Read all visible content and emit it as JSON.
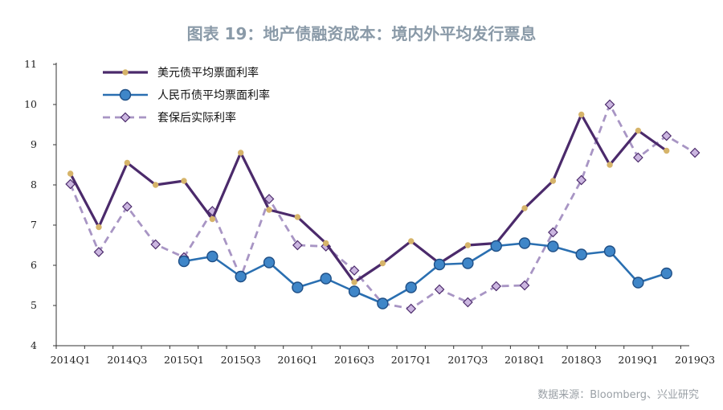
{
  "title": "图表 19：地产债融资成本：境内外平均发行票息",
  "source": "数据来源：Bloomberg、兴业研究",
  "colors": {
    "usd": "#4b2a6b",
    "usd_marker": "#d6b46a",
    "cny": "#2a6fb1",
    "cny_fill": "#3f86c8",
    "hedged": "#a895c4",
    "hedged_fill": "#cbb6e0"
  },
  "chart_data": {
    "type": "line",
    "title": "",
    "xlabel": "",
    "ylabel": "",
    "ylim": [
      4,
      11
    ],
    "yticks": [
      "4",
      "5",
      "6",
      "7",
      "8",
      "9",
      "10",
      "11"
    ],
    "x": [
      "2014Q1",
      "2014Q2",
      "2014Q3",
      "2014Q4",
      "2015Q1",
      "2015Q2",
      "2015Q3",
      "2015Q4",
      "2016Q1",
      "2016Q2",
      "2016Q3",
      "2016Q4",
      "2017Q1",
      "2017Q2",
      "2017Q3",
      "2017Q4",
      "2018Q1",
      "2018Q2",
      "2018Q3",
      "2018Q4",
      "2019Q1",
      "2019Q2",
      "2019Q3"
    ],
    "xtick_labels": [
      "2014Q1",
      "2014Q3",
      "2015Q1",
      "2015Q3",
      "2016Q1",
      "2016Q3",
      "2017Q1",
      "2017Q3",
      "2018Q1",
      "2018Q3",
      "2019Q1",
      "2019Q3"
    ],
    "legend_position": "top-left",
    "grid": false,
    "series": [
      {
        "name": "美元债平均票面利率",
        "values": [
          8.28,
          6.95,
          8.55,
          8.0,
          8.1,
          7.15,
          8.8,
          7.38,
          7.2,
          6.55,
          5.58,
          6.05,
          6.6,
          6.05,
          6.5,
          6.55,
          7.42,
          8.1,
          9.75,
          8.5,
          9.35,
          8.85,
          null
        ],
        "start_index": 0
      },
      {
        "name": "人民币债平均票面利率",
        "values": [
          null,
          null,
          null,
          null,
          6.1,
          6.22,
          5.72,
          6.07,
          5.45,
          5.67,
          5.35,
          5.05,
          5.45,
          6.02,
          6.05,
          6.48,
          6.55,
          6.47,
          6.27,
          6.35,
          5.57,
          5.8,
          null
        ]
      },
      {
        "name": "套保后实际利率",
        "values": [
          8.02,
          6.33,
          7.46,
          6.52,
          6.2,
          7.35,
          5.7,
          7.65,
          6.5,
          6.47,
          5.87,
          5.05,
          4.92,
          5.4,
          5.08,
          5.48,
          5.5,
          6.82,
          8.12,
          10.0,
          8.68,
          9.22,
          8.8
        ]
      }
    ]
  }
}
